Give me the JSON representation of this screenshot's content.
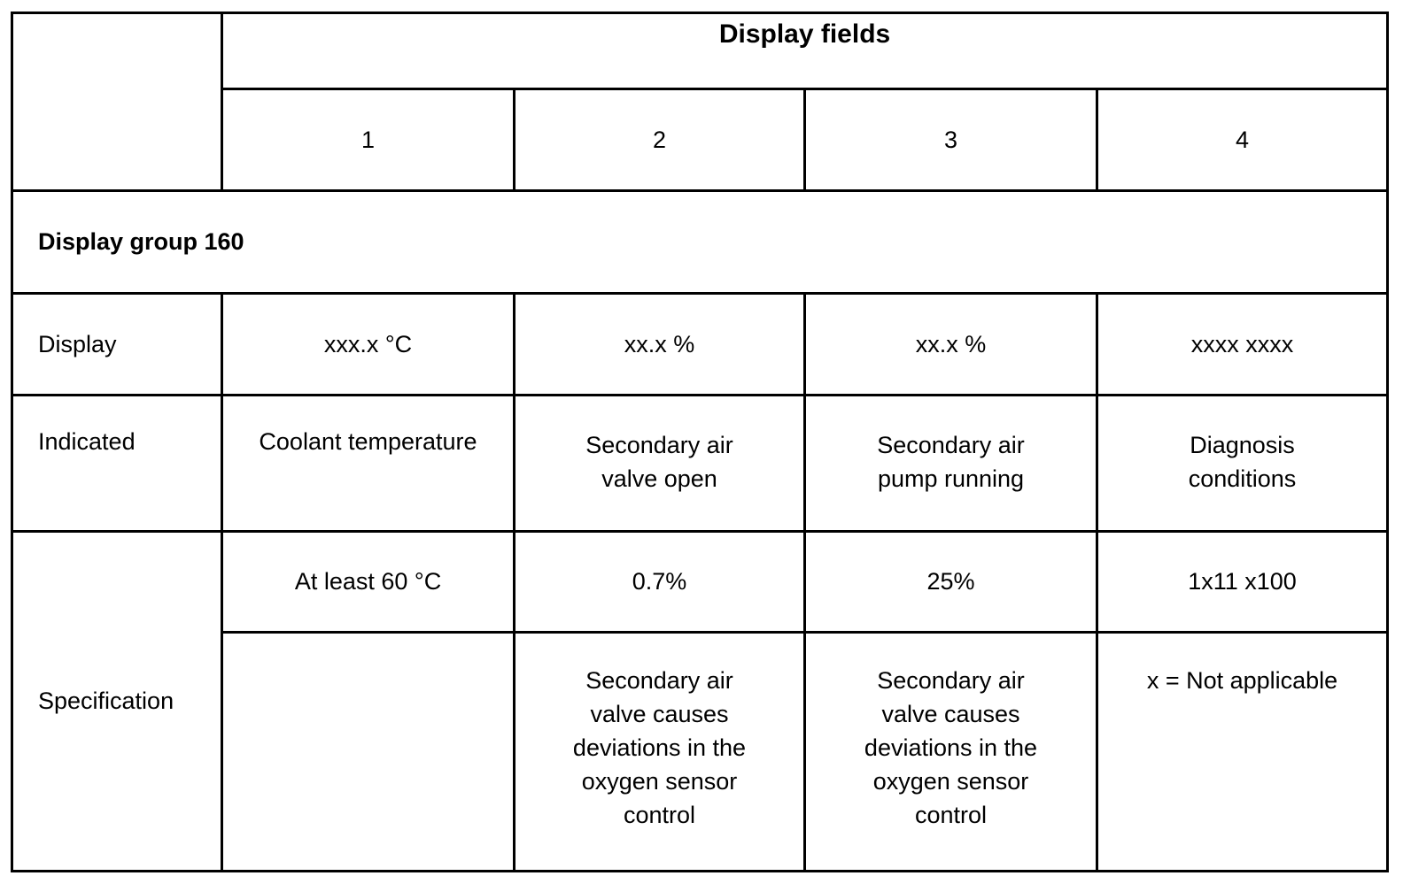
{
  "header": {
    "title": "Display fields",
    "columns": [
      "1",
      "2",
      "3",
      "4"
    ]
  },
  "group": "Display group 160",
  "rows": {
    "display": {
      "label": "Display",
      "cells": [
        "xxx.x °C",
        "xx.x %",
        "xx.x %",
        "xxxx xxxx"
      ]
    },
    "indicated": {
      "label": "Indicated",
      "cells": [
        "Coolant temperature",
        "Secondary air valve open",
        "Secondary air pump running",
        "Diagnosis conditions"
      ]
    },
    "specification": {
      "label": "Specification",
      "values": [
        "At least 60 °C",
        "0.7%",
        "25%",
        "1x11 x100"
      ],
      "notes": [
        null,
        "Secondary air valve causes deviations in the oxygen sensor control",
        "Secondary air valve causes deviations in the oxygen sensor control",
        "x = Not applicable"
      ]
    }
  }
}
